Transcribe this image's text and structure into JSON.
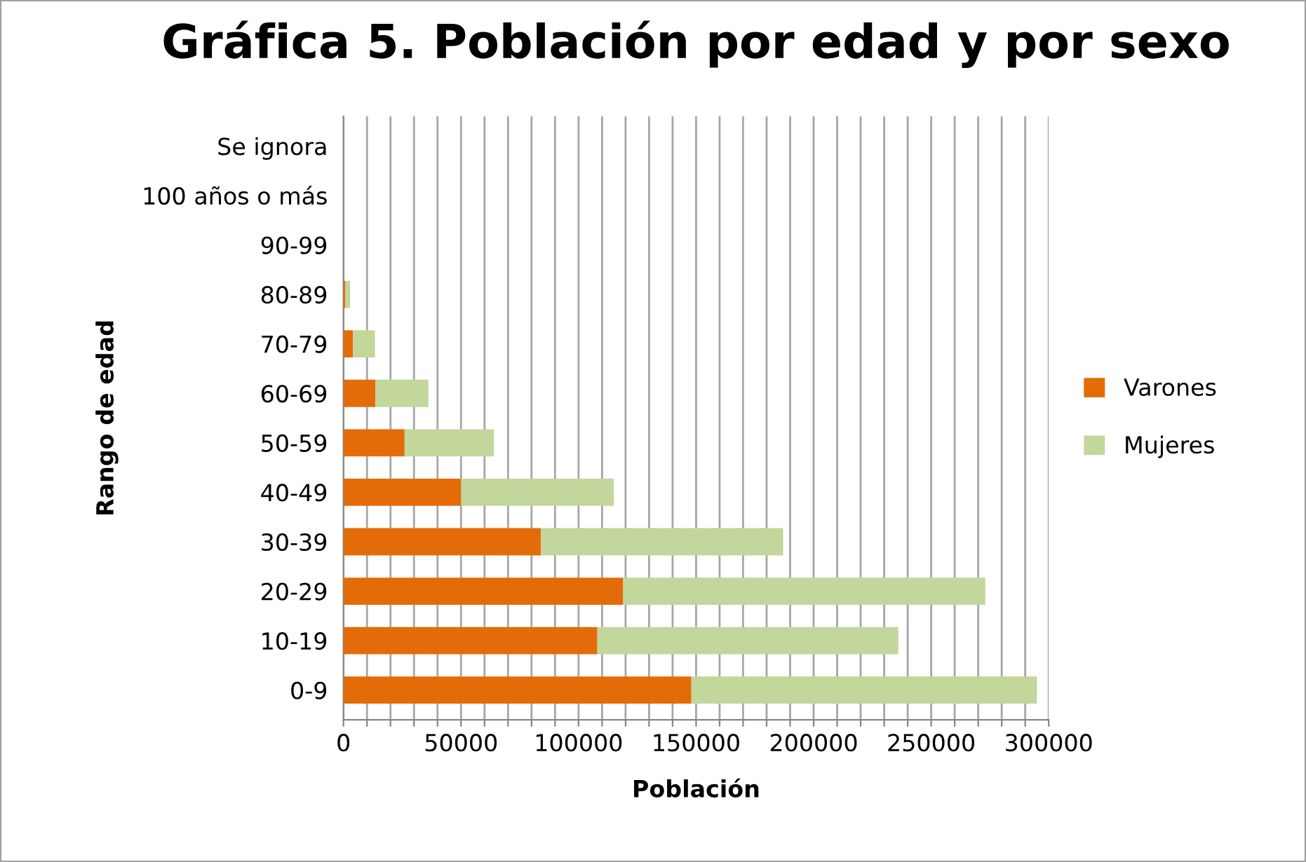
{
  "chart_data": {
    "type": "bar",
    "orientation": "horizontal",
    "stacked": true,
    "title": "Gráfica 5. Población por edad y por sexo",
    "xlabel": "Población",
    "ylabel": "Rango de edad",
    "categories": [
      "Se ignora",
      "100 años o más",
      "90-99",
      "80-89",
      "70-79",
      "60-69",
      "50-59",
      "40-49",
      "30-39",
      "20-29",
      "10-19",
      "0-9"
    ],
    "series": [
      {
        "name": "Varones",
        "color": "#e36c09",
        "values": [
          0,
          0,
          0,
          800,
          4000,
          13600,
          26000,
          50000,
          84000,
          119000,
          108000,
          148000
        ]
      },
      {
        "name": "Mujeres",
        "color": "#c3d69b",
        "values": [
          null,
          0,
          0,
          2000,
          9400,
          22500,
          38000,
          65000,
          103000,
          154000,
          128000,
          147000
        ]
      }
    ],
    "xlim": [
      0,
      300000
    ],
    "xticks": [
      0,
      {
        "value": 10000,
        "label": null
      },
      {
        "value": 20000,
        "label": null
      },
      {
        "value": 30000,
        "label": null
      },
      {
        "value": 40000,
        "label": null
      },
      50000,
      {
        "value": 60000,
        "label": null
      },
      {
        "value": 70000,
        "label": null
      },
      {
        "value": 80000,
        "label": null
      },
      {
        "value": 90000,
        "label": null
      },
      100000,
      {
        "value": 110000,
        "label": null
      },
      {
        "value": 120000,
        "label": null
      },
      {
        "value": 130000,
        "label": null
      },
      {
        "value": 140000,
        "label": null
      },
      150000,
      {
        "value": 160000,
        "label": null
      },
      {
        "value": 170000,
        "label": null
      },
      {
        "value": 180000,
        "label": null
      },
      {
        "value": 190000,
        "label": null
      },
      200000,
      {
        "value": 210000,
        "label": null
      },
      {
        "value": 220000,
        "label": null
      },
      {
        "value": 230000,
        "label": null
      },
      {
        "value": 240000,
        "label": null
      },
      250000,
      {
        "value": 260000,
        "label": null
      },
      {
        "value": 270000,
        "label": null
      },
      {
        "value": 280000,
        "label": null
      },
      {
        "value": 290000,
        "label": null
      },
      300000
    ],
    "grid": "x",
    "legend": "right"
  }
}
